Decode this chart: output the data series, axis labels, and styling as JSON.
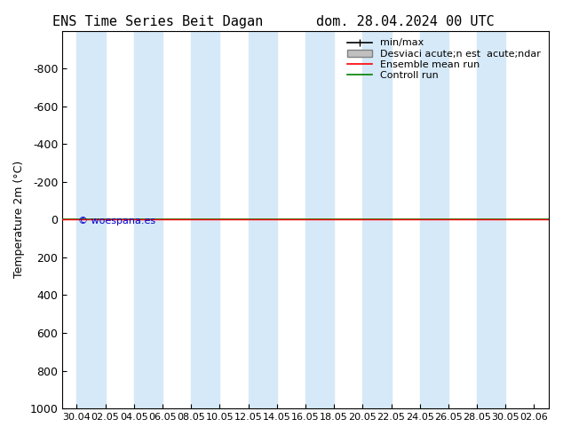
{
  "title_left": "ENS Time Series Beit Dagan",
  "title_right": "dom. 28.04.2024 00 UTC",
  "ylabel": "Temperature 2m (°C)",
  "ylim": [
    1000,
    -1000
  ],
  "yticks": [
    1000,
    800,
    600,
    400,
    200,
    0,
    -200,
    -400,
    -600,
    -800
  ],
  "xtick_labels": [
    "30.04",
    "02.05",
    "04.05",
    "06.05",
    "08.05",
    "10.05",
    "12.05",
    "14.05",
    "16.05",
    "18.05",
    "20.05",
    "22.05",
    "24.05",
    "26.05",
    "28.05",
    "30.05",
    "02.06"
  ],
  "shade_color": "#d6e9f8",
  "background_color": "#ffffff",
  "green_line_y": 0,
  "green_line_color": "#008000",
  "red_line_color": "#ff0000",
  "watermark": "© woespana.es",
  "watermark_color": "#0000cc",
  "legend_labels": [
    "min/max",
    "Desviaci acute;n est  acute;ndar",
    "Ensemble mean run",
    "Controll run"
  ],
  "legend_colors": [
    "#000000",
    "#c0c0c0",
    "#ff0000",
    "#008000"
  ],
  "font_size": 9,
  "title_font_size": 11
}
